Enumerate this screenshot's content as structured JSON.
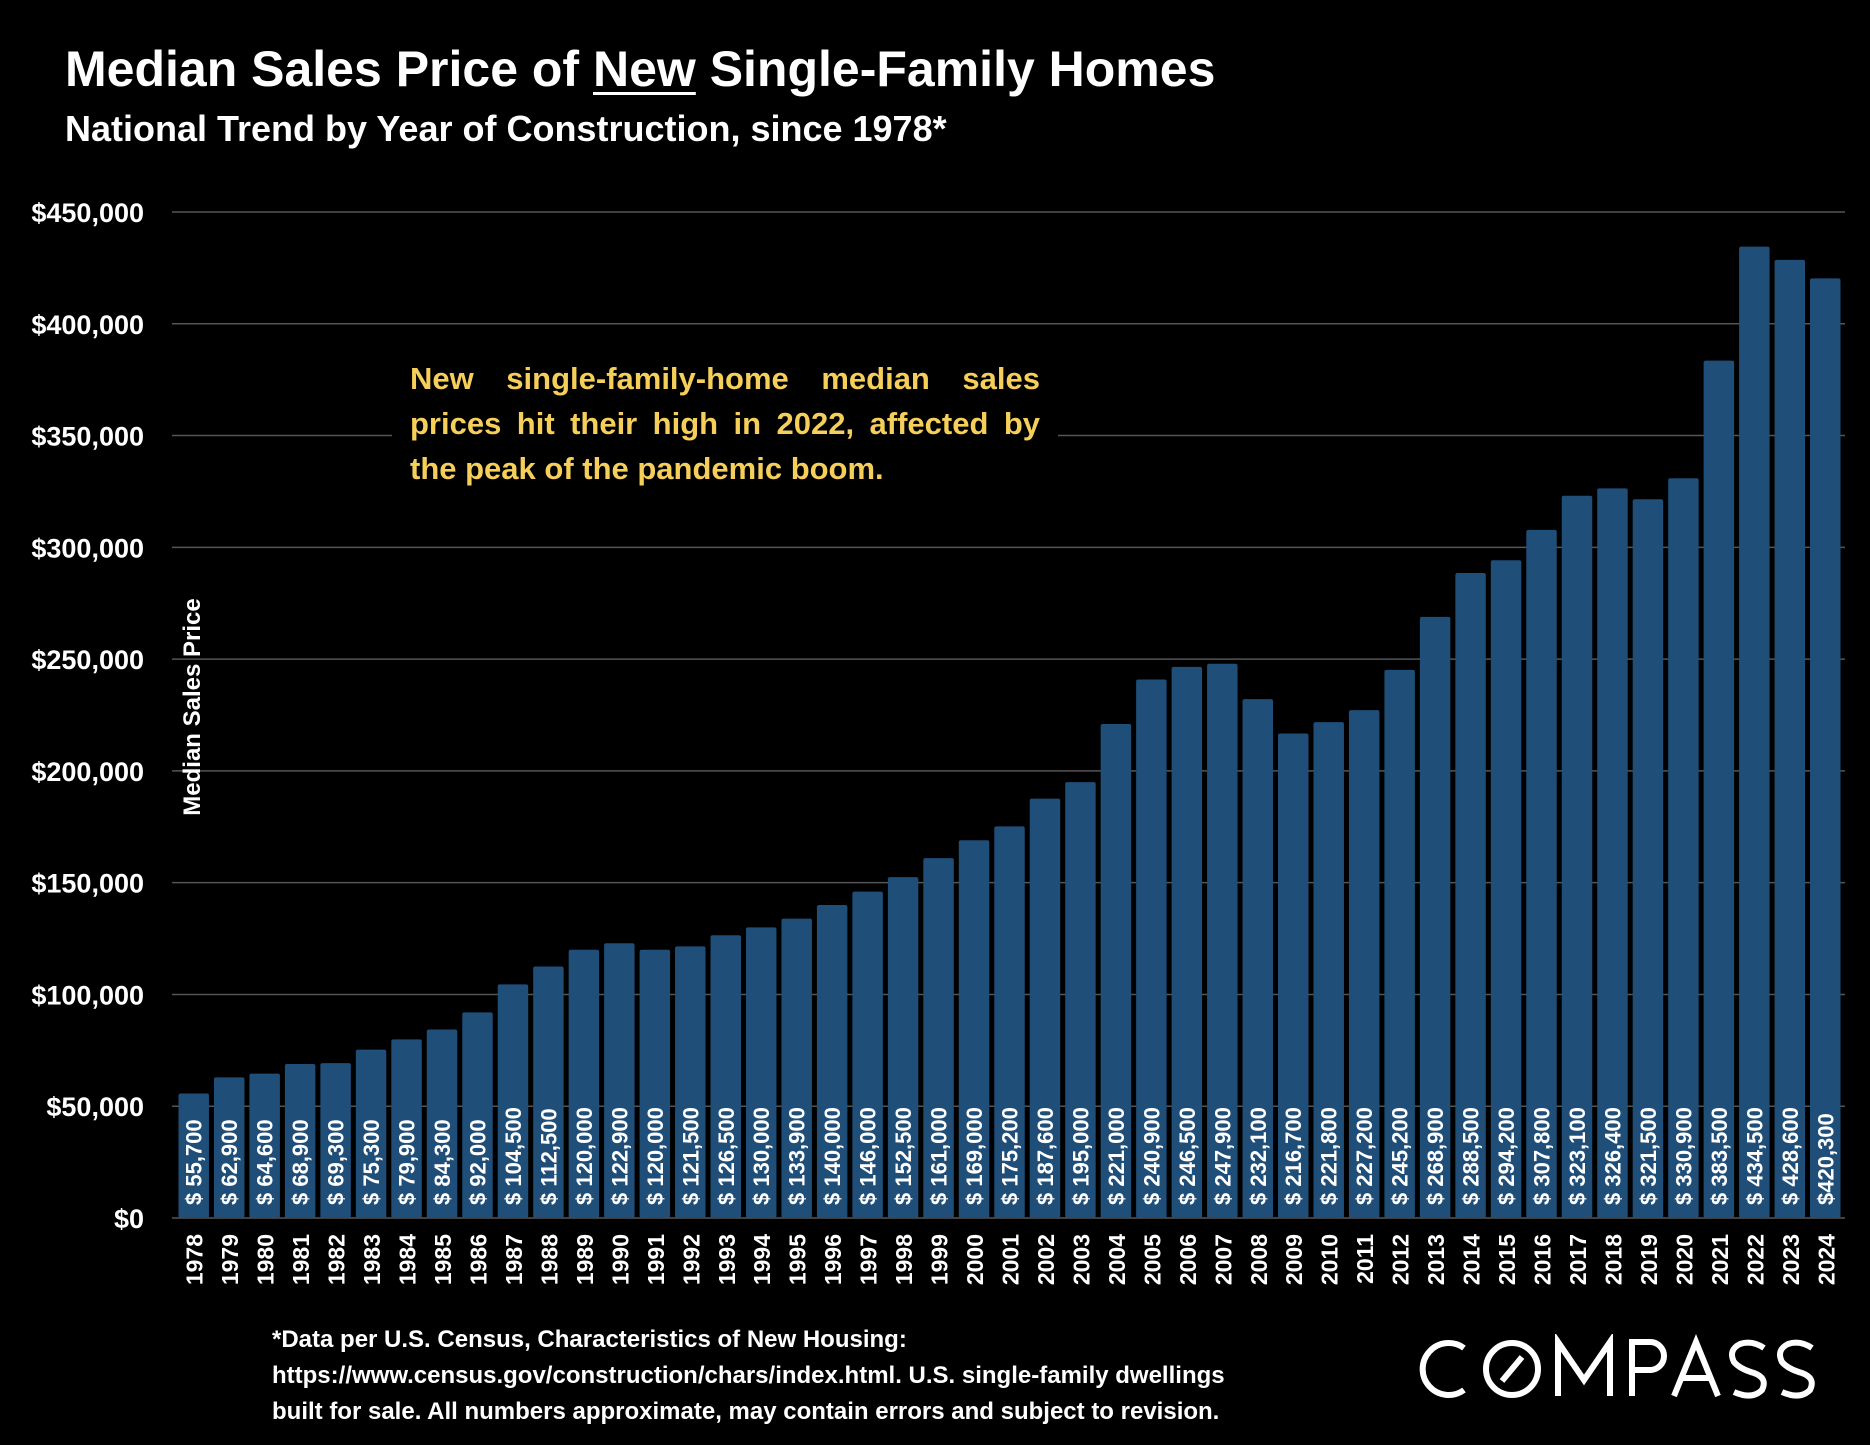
{
  "title": {
    "prefix": "Median Sales Price of ",
    "underlined": "New",
    "suffix": " Single-Family Homes"
  },
  "subtitle": "National Trend by Year of Construction, since 1978*",
  "annotation": "New single-family-home median sales prices hit their high in 2022, affected by the peak of the pandemic boom.",
  "footnote": [
    "*Data per U.S. Census, Characteristics of New Housing:",
    "https://www.census.gov/construction/chars/index.html. U.S. single-family dwellings",
    "built for sale. All numbers approximate, may contain errors and subject to revision."
  ],
  "logo": "COMPASS",
  "colors": {
    "background": "#000000",
    "bar": "#1f4e79",
    "annotation": "#f5cf5a",
    "grid": "#555555"
  },
  "chart_data": {
    "type": "bar",
    "title": "Median Sales Price of New Single-Family Homes",
    "subtitle": "National Trend by Year of Construction, since 1978*",
    "xlabel": "",
    "ylabel": "Median Sales Price",
    "ylim": [
      0,
      450000
    ],
    "yticks": [
      0,
      50000,
      100000,
      150000,
      200000,
      250000,
      300000,
      350000,
      400000,
      450000
    ],
    "ytick_labels": [
      "$0",
      "$50,000",
      "$100,000",
      "$150,000",
      "$200,000",
      "$250,000",
      "$300,000",
      "$350,000",
      "$400,000",
      "$450,000"
    ],
    "grid": "horizontal",
    "categories": [
      "1978",
      "1979",
      "1980",
      "1981",
      "1982",
      "1983",
      "1984",
      "1985",
      "1986",
      "1987",
      "1988",
      "1989",
      "1990",
      "1991",
      "1992",
      "1993",
      "1994",
      "1995",
      "1996",
      "1997",
      "1998",
      "1999",
      "2000",
      "2001",
      "2002",
      "2003",
      "2004",
      "2005",
      "2006",
      "2007",
      "2008",
      "2009",
      "2010",
      "2011",
      "2012",
      "2013",
      "2014",
      "2015",
      "2016",
      "2017",
      "2018",
      "2019",
      "2020",
      "2021",
      "2022",
      "2023",
      "2024"
    ],
    "values": [
      55700,
      62900,
      64600,
      68900,
      69300,
      75300,
      79900,
      84300,
      92000,
      104500,
      112500,
      120000,
      122900,
      120000,
      121500,
      126500,
      130000,
      133900,
      140000,
      146000,
      152500,
      161000,
      169000,
      175200,
      187600,
      195000,
      221000,
      240900,
      246500,
      247900,
      232100,
      216700,
      221800,
      227200,
      245200,
      268900,
      288500,
      294200,
      307800,
      323100,
      326400,
      321500,
      330900,
      383500,
      434500,
      428600,
      420300
    ],
    "data_labels": [
      "$ 55,700",
      "$ 62,900",
      "$ 64,600",
      "$ 68,900",
      "$ 69,300",
      "$ 75,300",
      "$ 79,900",
      "$ 84,300",
      "$ 92,000",
      "$ 104,500",
      "$ 112,500",
      "$ 120,000",
      "$ 122,900",
      "$ 120,000",
      "$ 121,500",
      "$ 126,500",
      "$ 130,000",
      "$ 133,900",
      "$ 140,000",
      "$ 146,000",
      "$ 152,500",
      "$ 161,000",
      "$ 169,000",
      "$ 175,200",
      "$ 187,600",
      "$ 195,000",
      "$ 221,000",
      "$ 240,900",
      "$ 246,500",
      "$ 247,900",
      "$ 232,100",
      "$ 216,700",
      "$ 221,800",
      "$ 227,200",
      "$ 245,200",
      "$ 268,900",
      "$ 288,500",
      "$ 294,200",
      "$ 307,800",
      "$ 323,100",
      "$ 326,400",
      "$ 321,500",
      "$ 330,900",
      "$ 383,500",
      "$ 434,500",
      "$ 428,600",
      "$420,300"
    ],
    "annotation": "New single-family-home median sales prices hit their high in 2022, affected by the peak of the pandemic boom."
  }
}
